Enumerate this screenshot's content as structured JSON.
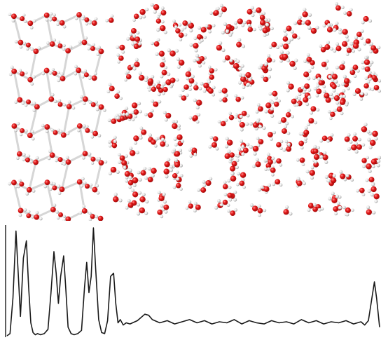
{
  "colors": {
    "background": "#ffffff",
    "oxygen": "#e01515",
    "oxygen_shade": "#9a0c0c",
    "hydrogen": "#e8e8e8",
    "hydrogen_shade": "#9a9a9a",
    "profile_line": "#1a1a1a",
    "axis": "#1a1a1a"
  },
  "snapshot": {
    "ice_region": "hexagonal-lattice",
    "liquid_region": "disordered-molecules",
    "ice_lattice": {
      "columns": 6,
      "rows": 8
    },
    "liquid_molecule_count": 330
  },
  "chart_data": {
    "type": "line",
    "title": "",
    "xlabel": "",
    "ylabel": "",
    "grid": false,
    "xlim": [
      0,
      100
    ],
    "ylim": [
      0,
      1
    ],
    "series": [
      {
        "name": "",
        "x": [
          0.0,
          0.8,
          1.6,
          2.4,
          3.0,
          3.6,
          4.4,
          5.2,
          5.8,
          6.4,
          7.0,
          7.6,
          8.2,
          9.0,
          10.0,
          11.0,
          11.8,
          12.6,
          13.2,
          13.8,
          14.4,
          15.2,
          15.8,
          16.4,
          17.2,
          18.0,
          19.0,
          20.0,
          20.8,
          21.4,
          22.0,
          22.6,
          23.2,
          23.8,
          24.6,
          25.4,
          26.2,
          27.0,
          27.8,
          28.6,
          29.2,
          29.8,
          30.4,
          31.2,
          32.0,
          33.0,
          35.0,
          37.0,
          38.0,
          39.0,
          41.0,
          43.0,
          45.0,
          47.0,
          49.0,
          51.0,
          53.0,
          55.0,
          57.0,
          59.0,
          61.0,
          63.0,
          65.0,
          67.0,
          69.0,
          71.0,
          73.0,
          75.0,
          77.0,
          79.0,
          81.0,
          83.0,
          85.0,
          87.0,
          89.0,
          91.0,
          93.0,
          95.0,
          96.0,
          97.0,
          97.8,
          98.6,
          99.2,
          100.0
        ],
        "y": [
          0.0,
          0.02,
          0.35,
          0.97,
          0.58,
          0.18,
          0.72,
          0.88,
          0.45,
          0.12,
          0.03,
          0.01,
          0.02,
          0.01,
          0.02,
          0.06,
          0.4,
          0.78,
          0.58,
          0.3,
          0.55,
          0.74,
          0.42,
          0.08,
          0.02,
          0.01,
          0.02,
          0.05,
          0.45,
          0.68,
          0.4,
          0.55,
          1.0,
          0.62,
          0.15,
          0.03,
          0.02,
          0.14,
          0.55,
          0.58,
          0.3,
          0.12,
          0.15,
          0.1,
          0.12,
          0.11,
          0.14,
          0.2,
          0.19,
          0.15,
          0.12,
          0.14,
          0.11,
          0.13,
          0.15,
          0.12,
          0.14,
          0.11,
          0.13,
          0.12,
          0.15,
          0.11,
          0.14,
          0.12,
          0.11,
          0.14,
          0.12,
          0.13,
          0.11,
          0.15,
          0.12,
          0.14,
          0.11,
          0.13,
          0.12,
          0.14,
          0.11,
          0.13,
          0.1,
          0.14,
          0.32,
          0.5,
          0.35,
          0.08
        ]
      }
    ]
  }
}
